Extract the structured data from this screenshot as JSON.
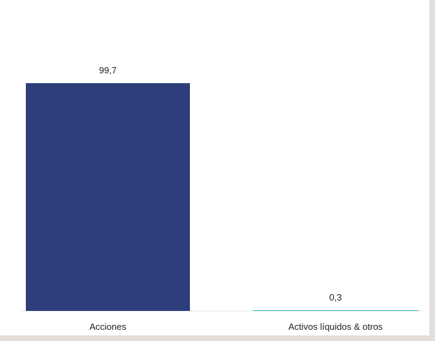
{
  "chart_data": {
    "type": "bar",
    "categories": [
      "Acciones",
      "Activos líquidos & otros"
    ],
    "values": [
      99.7,
      0.3
    ],
    "value_labels": [
      "99,7",
      "0,3"
    ],
    "colors": [
      "#2e3e7b",
      "#3fb3b6"
    ],
    "title": "",
    "xlabel": "",
    "ylabel": "",
    "ylim": [
      0,
      100
    ],
    "grid": false,
    "legend": "none"
  }
}
